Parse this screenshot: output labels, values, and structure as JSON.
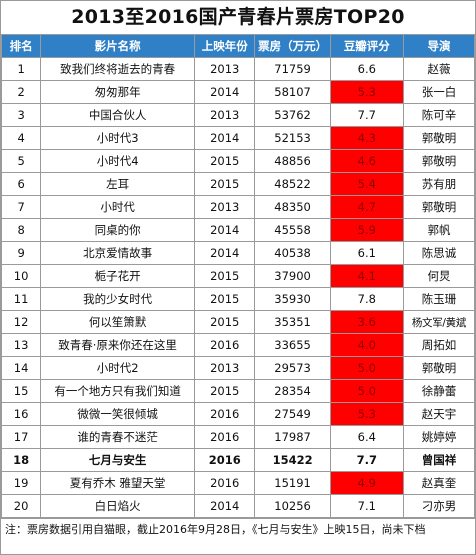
{
  "title": "2013至2016国产青春片票房TOP20",
  "headers": {
    "rank": "排名",
    "title": "影片名称",
    "year": "上映年份",
    "box": "票房（万元）",
    "score": "豆瓣评分",
    "director": "导演"
  },
  "colors": {
    "header_bg": "#2f80c6",
    "low_score_bg": "#ff0000",
    "low_score_text": "#8b0000"
  },
  "rows": [
    {
      "rank": "1",
      "title": "致我们终将逝去的青春",
      "year": "2013",
      "box": "71759",
      "score": "6.6",
      "director": "赵薇",
      "low": false
    },
    {
      "rank": "2",
      "title": "匆匆那年",
      "year": "2014",
      "box": "58107",
      "score": "5.3",
      "director": "张一白",
      "low": true
    },
    {
      "rank": "3",
      "title": "中国合伙人",
      "year": "2013",
      "box": "53762",
      "score": "7.7",
      "director": "陈可辛",
      "low": false
    },
    {
      "rank": "4",
      "title": "小时代3",
      "year": "2014",
      "box": "52153",
      "score": "4.3",
      "director": "郭敬明",
      "low": true
    },
    {
      "rank": "5",
      "title": "小时代4",
      "year": "2015",
      "box": "48856",
      "score": "4.6",
      "director": "郭敬明",
      "low": true
    },
    {
      "rank": "6",
      "title": "左耳",
      "year": "2015",
      "box": "48522",
      "score": "5.4",
      "director": "苏有朋",
      "low": true
    },
    {
      "rank": "7",
      "title": "小时代",
      "year": "2013",
      "box": "48350",
      "score": "4.7",
      "director": "郭敬明",
      "low": true
    },
    {
      "rank": "8",
      "title": "同桌的你",
      "year": "2014",
      "box": "45558",
      "score": "5.9",
      "director": "郭帆",
      "low": true
    },
    {
      "rank": "9",
      "title": "北京爱情故事",
      "year": "2014",
      "box": "40538",
      "score": "6.1",
      "director": "陈思诚",
      "low": false
    },
    {
      "rank": "10",
      "title": "栀子花开",
      "year": "2015",
      "box": "37900",
      "score": "4.1",
      "director": "何炅",
      "low": true
    },
    {
      "rank": "11",
      "title": "我的少女时代",
      "year": "2015",
      "box": "35930",
      "score": "7.8",
      "director": "陈玉珊",
      "low": false
    },
    {
      "rank": "12",
      "title": "何以笙箫默",
      "year": "2015",
      "box": "35351",
      "score": "3.6",
      "director": "杨文军/黄斌",
      "low": true
    },
    {
      "rank": "13",
      "title": "致青春·原来你还在这里",
      "year": "2016",
      "box": "33655",
      "score": "4.0",
      "director": "周拓如",
      "low": true
    },
    {
      "rank": "14",
      "title": "小时代2",
      "year": "2013",
      "box": "29573",
      "score": "5.0",
      "director": "郭敬明",
      "low": true
    },
    {
      "rank": "15",
      "title": "有一个地方只有我们知道",
      "year": "2015",
      "box": "28354",
      "score": "5.0",
      "director": "徐静蕾",
      "low": true
    },
    {
      "rank": "16",
      "title": "微微一笑很倾城",
      "year": "2016",
      "box": "27549",
      "score": "5.3",
      "director": "赵天宇",
      "low": true
    },
    {
      "rank": "17",
      "title": "谁的青春不迷茫",
      "year": "2016",
      "box": "17987",
      "score": "6.4",
      "director": "姚婷婷",
      "low": false
    },
    {
      "rank": "18",
      "title": "七月与安生",
      "year": "2016",
      "box": "15422",
      "score": "7.7",
      "director": "曾国祥",
      "low": false,
      "bold": true
    },
    {
      "rank": "19",
      "title": "夏有乔木 雅望天堂",
      "year": "2016",
      "box": "15191",
      "score": "4.9",
      "director": "赵真奎",
      "low": true
    },
    {
      "rank": "20",
      "title": "白日焰火",
      "year": "2014",
      "box": "10256",
      "score": "7.1",
      "director": "刁亦男",
      "low": false
    }
  ],
  "note": "注：票房数据引用自猫眼，截止2016年9月28日，《七月与安生》上映15日，尚未下档"
}
